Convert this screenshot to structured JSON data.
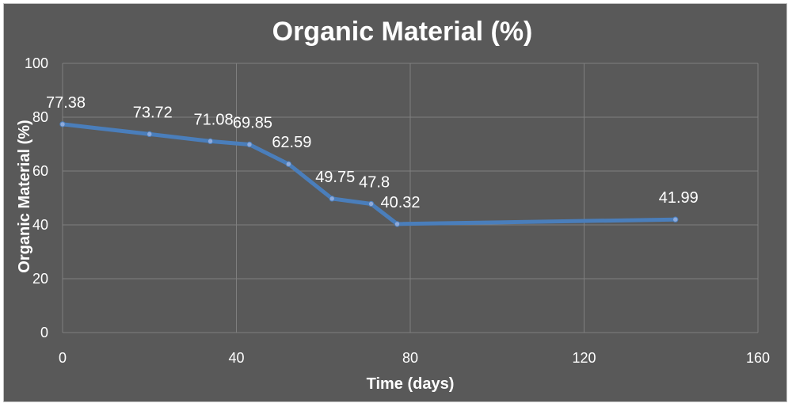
{
  "chart_data": {
    "type": "scatter",
    "title": "Organic Material (%)",
    "xlabel": "Time (days)",
    "ylabel": "Organic Material (%)",
    "xlim": [
      0,
      160
    ],
    "ylim": [
      0,
      100
    ],
    "x_ticks": [
      0,
      40,
      80,
      120,
      160
    ],
    "y_ticks": [
      0,
      20,
      40,
      60,
      80,
      100
    ],
    "grid": true,
    "legend": "none",
    "series": [
      {
        "x": [
          0,
          20,
          34,
          43,
          52,
          62,
          71,
          77,
          141
        ],
        "y": [
          77.38,
          73.72,
          71.08,
          69.85,
          62.59,
          49.75,
          47.8,
          40.32,
          41.99
        ],
        "data_labels": [
          "77.38",
          "73.72",
          "71.08",
          "69.85",
          "62.59",
          "49.75",
          "47.8",
          "40.32",
          "41.99"
        ]
      }
    ],
    "colors": {
      "background": "#595959",
      "line": "#4a7ebb",
      "text": "#ffffff",
      "grid": "#7f7f7f"
    }
  }
}
